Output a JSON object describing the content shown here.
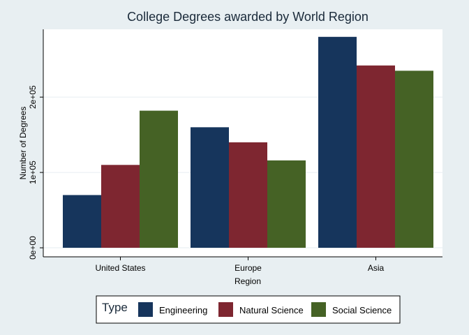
{
  "chart_data": {
    "type": "bar",
    "title": "College Degrees awarded by World Region",
    "xlabel": "Region",
    "ylabel": "Number of Degrees",
    "categories": [
      "United States",
      "Europe",
      "Asia"
    ],
    "series": [
      {
        "name": "Engineering",
        "color": "#16355c",
        "values": [
          70000,
          160000,
          280000
        ]
      },
      {
        "name": "Natural Science",
        "color": "#7e2630",
        "values": [
          110000,
          140000,
          242000
        ]
      },
      {
        "name": "Social Science",
        "color": "#456225",
        "values": [
          182000,
          116000,
          235000
        ]
      }
    ],
    "yticks": [
      0,
      100000,
      200000
    ],
    "ytick_labels": [
      "0e+00",
      "1e+05",
      "2e+05"
    ],
    "ylim": [
      -12000,
      290000
    ],
    "grid": true,
    "legend_title": "Type",
    "legend_position": "bottom",
    "colors": {
      "background": "#e8eff2",
      "plot_background": "#ffffff",
      "grid": "#e6eef2"
    }
  }
}
